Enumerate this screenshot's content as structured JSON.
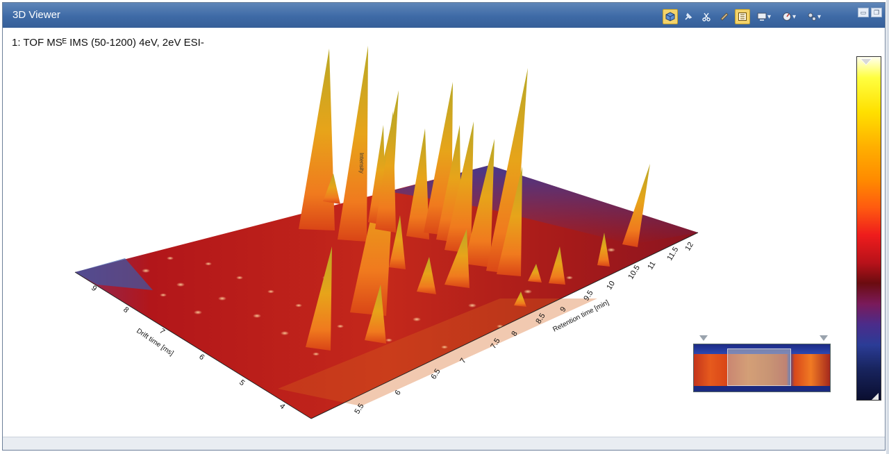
{
  "window": {
    "title": "3D Viewer",
    "subtitle": "1: TOF MSᴱ IMS (50-1200) 4eV, 2eV ESI-"
  },
  "toolbar": {
    "buttons": [
      {
        "icon": "3d-cube-icon",
        "active": true
      },
      {
        "icon": "pin-icon"
      },
      {
        "icon": "scissors-icon"
      },
      {
        "icon": "ruler-icon"
      },
      {
        "icon": "list-view-icon",
        "active": true
      },
      {
        "icon": "display-icon",
        "dropdown": true
      },
      {
        "icon": "compass-icon",
        "dropdown": true
      },
      {
        "icon": "settings-gears-icon",
        "dropdown": true
      }
    ]
  },
  "axes": {
    "retention": {
      "label": "Retention time [min]",
      "ticks": [
        "5.5",
        "6",
        "6.5",
        "7",
        "7.5",
        "8",
        "8.5",
        "9",
        "9.5",
        "10",
        "10.5",
        "11",
        "11.5",
        "12"
      ]
    },
    "drift": {
      "label": "Drift time [ms]",
      "ticks": [
        "4",
        "5",
        "6",
        "7",
        "8",
        "9"
      ]
    },
    "intensity": {
      "label": "Intensity"
    }
  },
  "colors": {
    "surface_base": "#b3161a",
    "peak": "#e7a41a",
    "low": "#2a3a9a"
  }
}
